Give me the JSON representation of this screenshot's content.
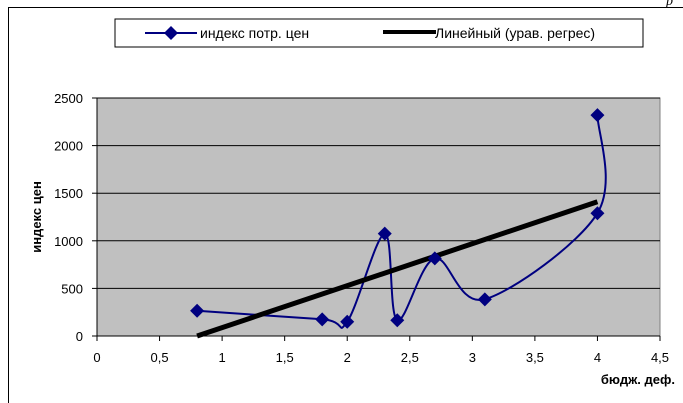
{
  "page": {
    "corner_mark": "р"
  },
  "chart_data": {
    "type": "scatter",
    "xlabel": "бюдж. деф.",
    "ylabel": "индекс цен",
    "xlim": [
      0,
      4.5
    ],
    "ylim": [
      0,
      2500
    ],
    "x_ticks": [
      "0",
      "0,5",
      "1",
      "1,5",
      "2",
      "2,5",
      "3",
      "3,5",
      "4",
      "4,5"
    ],
    "y_ticks": [
      "0",
      "500",
      "1000",
      "1500",
      "2000",
      "2500"
    ],
    "grid": "horizontal",
    "plot_background": "#c0c0c0",
    "legend_position": "top",
    "series": [
      {
        "name": "индекс потр. цен",
        "color": "#000080",
        "marker": "diamond",
        "line": "smoothed",
        "x": [
          0.8,
          1.8,
          2.0,
          2.3,
          2.4,
          2.7,
          3.1,
          4.0,
          4.0
        ],
        "y": [
          265,
          175,
          150,
          1075,
          165,
          815,
          385,
          1290,
          2320
        ]
      },
      {
        "name": "Линейный (урав. регрес)",
        "color": "#000000",
        "type": "trendline",
        "x": [
          0.8,
          4.0
        ],
        "y": [
          0,
          1410
        ]
      }
    ]
  }
}
